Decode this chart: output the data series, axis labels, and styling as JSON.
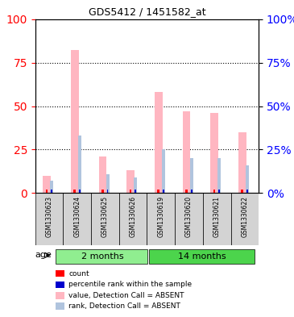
{
  "title": "GDS5412 / 1451582_at",
  "samples": [
    "GSM1330623",
    "GSM1330624",
    "GSM1330625",
    "GSM1330626",
    "GSM1330619",
    "GSM1330620",
    "GSM1330621",
    "GSM1330622"
  ],
  "groups": [
    "2 months",
    "2 months",
    "2 months",
    "2 months",
    "14 months",
    "14 months",
    "14 months",
    "14 months"
  ],
  "group_labels": [
    "2 months",
    "14 months"
  ],
  "group_colors": [
    "#90EE90",
    "#3CB371"
  ],
  "value_absent": [
    10,
    82,
    21,
    13,
    58,
    47,
    46,
    35
  ],
  "rank_absent": [
    7,
    33,
    11,
    9,
    25,
    20,
    20,
    16
  ],
  "count_red": [
    2,
    2,
    2,
    2,
    2,
    2,
    2,
    2
  ],
  "count_blue": [
    5,
    5,
    5,
    5,
    5,
    5,
    5,
    5
  ],
  "ylim_left": [
    0,
    100
  ],
  "ylim_right": [
    0,
    100
  ],
  "yticks": [
    0,
    25,
    50,
    75,
    100
  ],
  "bar_width": 0.35,
  "value_color": "#FFB6C1",
  "rank_color": "#B0C4DE",
  "count_color_red": "#FF0000",
  "count_color_blue": "#0000CD",
  "bg_color_samples": "#D3D3D3",
  "bg_color_group1": "#90EE90",
  "bg_color_group2": "#4CD44C",
  "grid_color": "black",
  "legend_items": [
    {
      "label": "count",
      "color": "#FF0000",
      "marker": "s"
    },
    {
      "label": "percentile rank within the sample",
      "color": "#0000CD",
      "marker": "s"
    },
    {
      "label": "value, Detection Call = ABSENT",
      "color": "#FFB6C1",
      "marker": "s"
    },
    {
      "label": "rank, Detection Call = ABSENT",
      "color": "#B0C4DE",
      "marker": "s"
    }
  ]
}
